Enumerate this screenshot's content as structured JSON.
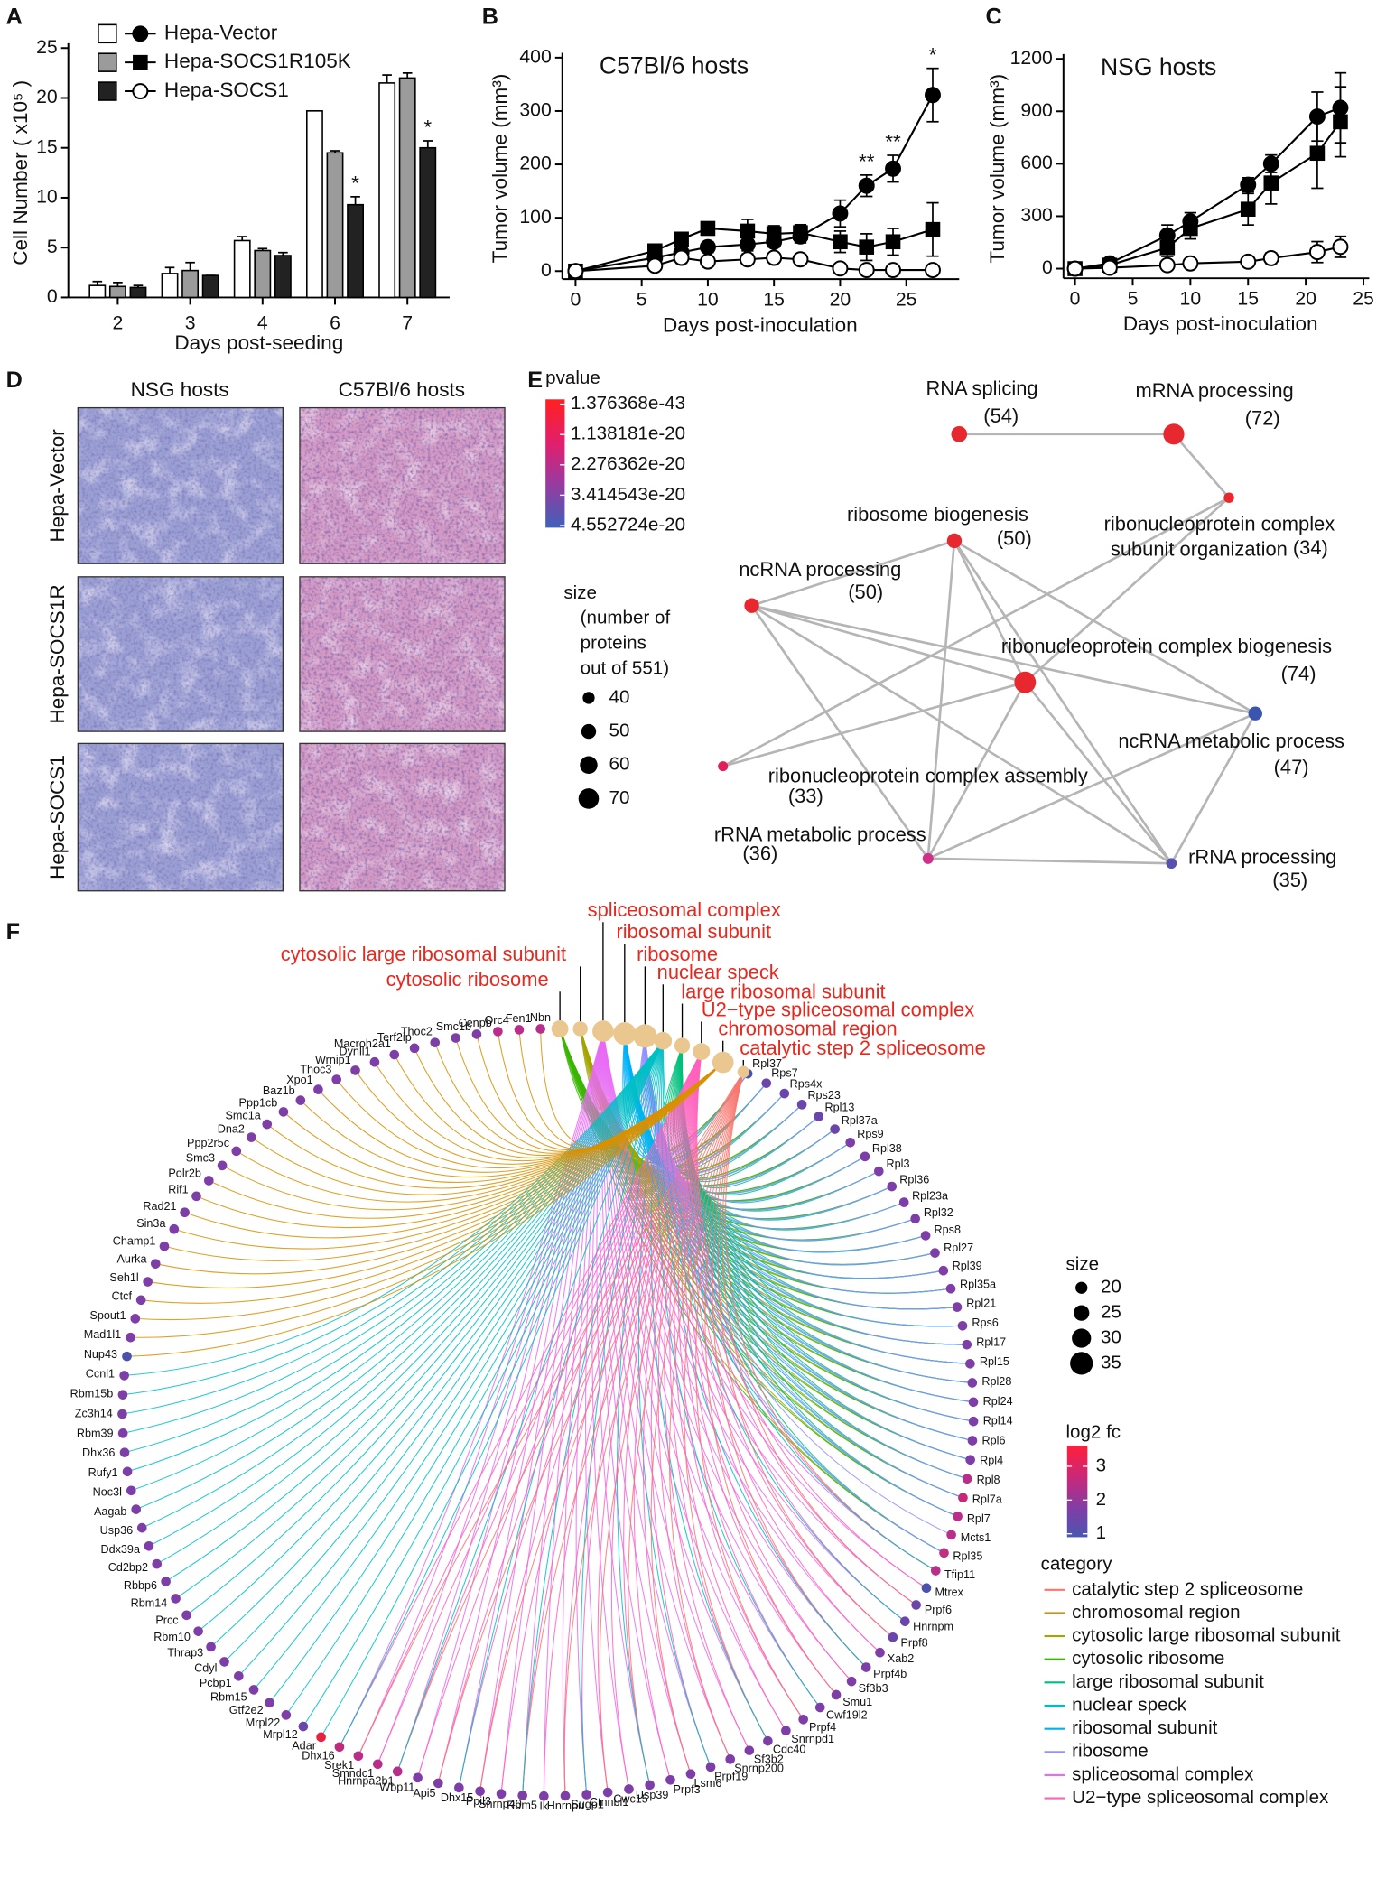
{
  "panel_labels": [
    "A",
    "B",
    "C",
    "D",
    "E",
    "F"
  ],
  "chart_data": [
    {
      "type": "bar",
      "xlabel": "Days post-seeding",
      "ylabel": "Cell Number ( x10⁵ )",
      "categories": [
        "2",
        "3",
        "4",
        "6",
        "7"
      ],
      "series": [
        {
          "name": "Hepa-Vector",
          "color": "#ffffff",
          "values": [
            1.2,
            2.4,
            5.7,
            18.7,
            21.5
          ],
          "errors": [
            0.4,
            0.6,
            0.4,
            0,
            0.8
          ]
        },
        {
          "name": "Hepa-SOCS1R105K",
          "color": "#9b9b9b",
          "values": [
            1.1,
            2.7,
            4.7,
            14.5,
            22
          ],
          "errors": [
            0.4,
            0.8,
            0.2,
            0.2,
            0.5
          ]
        },
        {
          "name": "Hepa-SOCS1",
          "color": "#222222",
          "values": [
            1.0,
            2.2,
            4.2,
            9.3,
            15
          ],
          "errors": [
            0.2,
            0,
            0.3,
            0.8,
            0.7
          ]
        }
      ],
      "ylim": [
        0,
        25
      ],
      "yticks": [
        0,
        5,
        10,
        15,
        20,
        25
      ],
      "annotations": [
        {
          "text": "*",
          "x": "6"
        },
        {
          "text": "*",
          "x": "7"
        }
      ]
    },
    {
      "type": "line",
      "title": "C57Bl/6 hosts",
      "xlabel": "Days post-inoculation",
      "ylabel": "Tumor volume (mm³)",
      "x": [
        0,
        6,
        8,
        10,
        13,
        15,
        17,
        20,
        22,
        24,
        27
      ],
      "series": [
        {
          "marker": "circle",
          "color": "#000000",
          "fill": "#000000",
          "values": [
            0,
            25,
            35,
            45,
            50,
            55,
            65,
            108,
            160,
            192,
            330
          ],
          "errors": [
            0,
            5,
            10,
            10,
            12,
            10,
            12,
            25,
            20,
            25,
            50
          ]
        },
        {
          "marker": "square",
          "color": "#000000",
          "fill": "#000000",
          "values": [
            0,
            38,
            60,
            80,
            75,
            70,
            72,
            55,
            45,
            55,
            78
          ],
          "errors": [
            0,
            10,
            10,
            10,
            22,
            15,
            15,
            20,
            25,
            25,
            50
          ]
        },
        {
          "marker": "circle",
          "color": "#000000",
          "fill": "#ffffff",
          "values": [
            0,
            10,
            25,
            18,
            22,
            25,
            22,
            5,
            2,
            2,
            2
          ],
          "errors": [
            0,
            5,
            10,
            8,
            10,
            8,
            8,
            5,
            3,
            3,
            3
          ]
        }
      ],
      "xlim": [
        -1,
        29
      ],
      "xticks": [
        0,
        5,
        10,
        15,
        20,
        25
      ],
      "ylim": [
        -15,
        400
      ],
      "yticks": [
        0,
        100,
        200,
        300,
        400
      ],
      "annotations": [
        {
          "text": "**",
          "x": 22
        },
        {
          "text": "**",
          "x": 24
        },
        {
          "text": "*",
          "x": 27
        }
      ]
    },
    {
      "type": "line",
      "title": "NSG hosts",
      "xlabel": "Days post-inoculation",
      "ylabel": "Tumor volume (mm³)",
      "x": [
        0,
        3,
        8,
        10,
        15,
        17,
        21,
        23
      ],
      "series": [
        {
          "marker": "circle",
          "color": "#000000",
          "fill": "#000000",
          "values": [
            0,
            30,
            190,
            270,
            480,
            600,
            870,
            920
          ],
          "errors": [
            0,
            10,
            60,
            50,
            40,
            50,
            140,
            200
          ]
        },
        {
          "marker": "square",
          "color": "#000000",
          "fill": "#000000",
          "values": [
            0,
            20,
            120,
            230,
            340,
            490,
            660,
            840
          ],
          "errors": [
            0,
            10,
            50,
            60,
            90,
            120,
            200,
            200
          ]
        },
        {
          "marker": "circle",
          "color": "#000000",
          "fill": "#ffffff",
          "values": [
            0,
            5,
            20,
            30,
            40,
            60,
            95,
            125
          ],
          "errors": [
            0,
            5,
            10,
            10,
            10,
            30,
            60,
            60
          ]
        }
      ],
      "xlim": [
        -1,
        25.5
      ],
      "xticks": [
        0,
        5,
        10,
        15,
        20,
        25
      ],
      "ylim": [
        -55,
        1200
      ],
      "yticks": [
        0,
        300,
        600,
        900,
        1200
      ],
      "annotations": []
    }
  ],
  "histology": {
    "columns": [
      "NSG hosts",
      "C57Bl/6 hosts"
    ],
    "rows": [
      "Hepa-Vector",
      "Hepa-SOCS1R",
      "Hepa-SOCS1"
    ]
  },
  "network": {
    "nodes": [
      {
        "label": [
          "RNA splicing"
        ],
        "count": 54,
        "count_label": "(54)",
        "color": "#e8282f"
      },
      {
        "label": [
          "mRNA processing"
        ],
        "count": 72,
        "count_label": "(72)",
        "color": "#e8282f"
      },
      {
        "label": [
          "ribonucleoprotein complex",
          "subunit organization"
        ],
        "count": 34,
        "count_label": "(34)",
        "color": "#e8282f"
      },
      {
        "label": [
          "ribosome biogenesis"
        ],
        "count": 50,
        "count_label": "(50)",
        "color": "#e8282f"
      },
      {
        "label": [
          "ncRNA processing"
        ],
        "count": 50,
        "count_label": "(50)",
        "color": "#e8282f"
      },
      {
        "label": [
          "ribonucleoprotein complex biogenesis"
        ],
        "count": 74,
        "count_label": "(74)",
        "color": "#e8282f"
      },
      {
        "label": [
          "ncRNA metabolic process"
        ],
        "count": 47,
        "count_label": "(47)",
        "color": "#3a55b0"
      },
      {
        "label": [
          "ribonucleoprotein complex assembly"
        ],
        "count": 33,
        "count_label": "(33)",
        "color": "#e0205a"
      },
      {
        "label": [
          "rRNA metabolic process"
        ],
        "count": 36,
        "count_label": "(36)",
        "color": "#d0308a"
      },
      {
        "label": [
          "rRNA processing"
        ],
        "count": 35,
        "count_label": "(35)",
        "color": "#5a50b0"
      }
    ],
    "colorbar": {
      "title": "pvalue",
      "ticks": [
        "1.376368e-43",
        "1.138181e-20",
        "2.276362e-20",
        "3.414543e-20",
        "4.552724e-20"
      ]
    },
    "size_legend": {
      "title": "size",
      "subtitle": [
        "(number of",
        "proteins",
        "out of 551)"
      ],
      "values": [
        40,
        50,
        60,
        70
      ]
    }
  },
  "cnet": {
    "categories": [
      "catalytic step 2 spliceosome",
      "chromosomal region",
      "cytosolic large ribosomal subunit",
      "cytosolic ribosome",
      "large ribosomal subunit",
      "nuclear speck",
      "ribosomal subunit",
      "ribosome",
      "spliceosomal complex",
      "U2−type spliceosomal complex"
    ],
    "category_colors": [
      "#f8766d",
      "#d89000",
      "#a3a500",
      "#39b600",
      "#00bf7d",
      "#00bfc4",
      "#00b0f6",
      "#9590ff",
      "#e76bf3",
      "#ff62bc"
    ],
    "category_sizes": [
      20,
      33,
      24,
      27,
      25,
      28,
      35,
      36,
      33,
      27
    ],
    "category_node_color": "#e9c78e",
    "genes": [
      "Rpl37",
      "Rps7",
      "Rps4x",
      "Rps23",
      "Rpl13",
      "Rpl37a",
      "Rps9",
      "Rpl38",
      "Rpl3",
      "Rpl36",
      "Rpl23a",
      "Rpl32",
      "Rps8",
      "Rpl27",
      "Rpl39",
      "Rpl35a",
      "Rpl21",
      "Rps6",
      "Rpl17",
      "Rpl15",
      "Rpl28",
      "Rpl24",
      "Rpl14",
      "Rpl6",
      "Rpl4",
      "Rpl8",
      "Rpl7a",
      "Rpl7",
      "Mcts1",
      "Rpl35",
      "Tfip11",
      "Mtrex",
      "Prpf6",
      "Hnrnpm",
      "Prpf8",
      "Xab2",
      "Prpf4b",
      "Sf3b3",
      "Smu1",
      "Cwf19l2",
      "Prpf4",
      "Snrnpd1",
      "Cdc40",
      "Sf3b2",
      "Snrnp200",
      "Prpf19",
      "Lsm6",
      "Prpf3",
      "Usp39",
      "Cwc15",
      "Ctnnbl1",
      "Sugp1",
      "Hnrnpu",
      "Ik",
      "Rbm5",
      "Snrnp40",
      "Ppil3",
      "Dhx15",
      "Api5",
      "Wbp11",
      "Hnrnpa2b1",
      "Smndc1",
      "Srek1",
      "Dhx16",
      "Adar",
      "Mrpl12",
      "Mrpl22",
      "Gtf2e2",
      "Rbm15",
      "Pcbp1",
      "Cdyl",
      "Thrap3",
      "Rbm10",
      "Prcc",
      "Rbm14",
      "Rbbp6",
      "Cd2bp2",
      "Ddx39a",
      "Usp36",
      "Aagab",
      "Noc3l",
      "Rufy1",
      "Dhx36",
      "Rbm39",
      "Zc3h14",
      "Rbm15b",
      "Ccnl1",
      "Nup43",
      "Mad1l1",
      "Spout1",
      "Ctcf",
      "Seh1l",
      "Aurka",
      "Champ1",
      "Sin3a",
      "Rad21",
      "Rif1",
      "Polr2b",
      "Smc3",
      "Ppp2r5c",
      "Dna2",
      "Smc1a",
      "Ppp1cb",
      "Baz1b",
      "Xpo1",
      "Thoc3",
      "Wrnip1",
      "Dynll1",
      "Macroh2a1",
      "Terf2ip",
      "Thoc2",
      "Smc1b",
      "Cenpb",
      "Orc4",
      "Fen1",
      "Nbn"
    ],
    "gene_colors": [
      "#4a52ad",
      "#6a46ab",
      "#6a46ab",
      "#6a46ab",
      "#6a46ab",
      "#6a46ab",
      "#7d3fa7",
      "#7d3fa7",
      "#7d3fa7",
      "#7d3fa7",
      "#7d3fa7",
      "#7d3fa7",
      "#7d3fa7",
      "#7d3fa7",
      "#7d3fa7",
      "#7d3fa7",
      "#7d3fa7",
      "#7d3fa7",
      "#7d3fa7",
      "#7d3fa7",
      "#7d3fa7",
      "#7d3fa7",
      "#7d3fa7",
      "#7d3fa7",
      "#7d3fa7",
      "#b82e8a",
      "#c8287a",
      "#b82e8a",
      "#b82e8a",
      "#c0307f",
      "#b82e8a",
      "#4a52ad",
      "#6a46ab",
      "#6a46ab",
      "#6a46ab",
      "#7d3fa7",
      "#7d3fa7",
      "#7d3fa7",
      "#7d3fa7",
      "#7d3fa7",
      "#7d3fa7",
      "#7d3fa7",
      "#7d3fa7",
      "#7d3fa7",
      "#7d3fa7",
      "#7d3fa7",
      "#7d3fa7",
      "#7d3fa7",
      "#7d3fa7",
      "#7d3fa7",
      "#7d3fa7",
      "#7d3fa7",
      "#7d3fa7",
      "#7d3fa7",
      "#7d3fa7",
      "#7d3fa7",
      "#7d3fa7",
      "#7d3fa7",
      "#7d3fa7",
      "#7d3fa7",
      "#b82e8a",
      "#b82e8a",
      "#b82e8a",
      "#c02a7a",
      "#e8213f",
      "#6a46ab",
      "#7d3fa7",
      "#7d3fa7",
      "#7d3fa7",
      "#7d3fa7",
      "#7d3fa7",
      "#7d3fa7",
      "#7d3fa7",
      "#7d3fa7",
      "#7d3fa7",
      "#7d3fa7",
      "#7d3fa7",
      "#7d3fa7",
      "#7d3fa7",
      "#7d3fa7",
      "#7d3fa7",
      "#7d3fa7",
      "#7d3fa7",
      "#7d3fa7",
      "#7d3fa7",
      "#7d3fa7",
      "#7d3fa7",
      "#4a52ad",
      "#7d3fa7",
      "#7d3fa7",
      "#7d3fa7",
      "#7d3fa7",
      "#7d3fa7",
      "#7d3fa7",
      "#7d3fa7",
      "#7d3fa7",
      "#7d3fa7",
      "#7d3fa7",
      "#7d3fa7",
      "#7d3fa7",
      "#7d3fa7",
      "#7d3fa7",
      "#7d3fa7",
      "#7d3fa7",
      "#7d3fa7",
      "#7d3fa7",
      "#7d3fa7",
      "#7d3fa7",
      "#7d3fa7",
      "#7d3fa7",
      "#7d3fa7",
      "#7d3fa7",
      "#7d3fa7",
      "#b82e8a",
      "#b82e8a",
      "#b82e8a"
    ],
    "size_legend": {
      "title": "size",
      "values": [
        20,
        25,
        30,
        35
      ]
    },
    "colorbar": {
      "title": "log2 fc",
      "lim": [
        0.9,
        3.6
      ],
      "ticks": [
        1,
        2,
        3
      ]
    },
    "legend_title": "category"
  }
}
